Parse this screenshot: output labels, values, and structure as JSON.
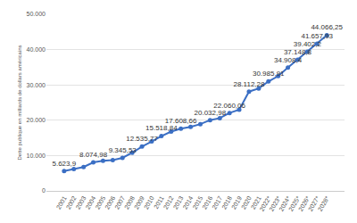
{
  "chart_data": {
    "type": "line",
    "y_label": "Dette publique en milliards de dollars américains",
    "categories": [
      "2001",
      "2002",
      "2003",
      "2004",
      "2005",
      "2006",
      "2007",
      "2008",
      "2009",
      "2010",
      "2011",
      "2012",
      "2013",
      "2014",
      "2015",
      "2016",
      "2017",
      "2018",
      "2019",
      "2020",
      "2021",
      "2022*",
      "2023*",
      "2024*",
      "2025*",
      "2026*",
      "2027*",
      "2028*"
    ],
    "values": [
      5623.9,
      6198,
      6760,
      8074.98,
      8500,
      8700,
      9345.53,
      10800,
      12535.77,
      14000,
      15518.84,
      16800,
      17608.66,
      18100,
      18900,
      20032.98,
      20600,
      22060.06,
      23000,
      28112.28,
      29000,
      30985.91,
      32500,
      34908.4,
      37148.8,
      39402.2,
      41657.93,
      44066.25
    ],
    "value_labels": [
      "5.623,9",
      null,
      null,
      "8.074,98",
      null,
      null,
      "9.345,53",
      null,
      "12.535,77",
      null,
      "15.518,84",
      null,
      "17.608,66",
      null,
      null,
      "20.032,98",
      null,
      "22.060,06",
      null,
      "28.112,28",
      null,
      "30.985,91",
      null,
      "34.908,4",
      "37.148,8",
      "39.402,2",
      "41.657,93",
      "44.066,25"
    ],
    "data_labels": true,
    "color": "#3b6fc4",
    "marker": "circle",
    "grid": true,
    "ylim": [
      0,
      50000
    ],
    "yticks": [
      0,
      {
        "value": 10000,
        "label": "10.000"
      },
      {
        "value": 20000,
        "label": "20.000"
      },
      {
        "value": 30000,
        "label": "30.000"
      },
      {
        "value": 40000,
        "label": "40.000"
      },
      {
        "value": 50000,
        "label": "50.000"
      }
    ]
  }
}
